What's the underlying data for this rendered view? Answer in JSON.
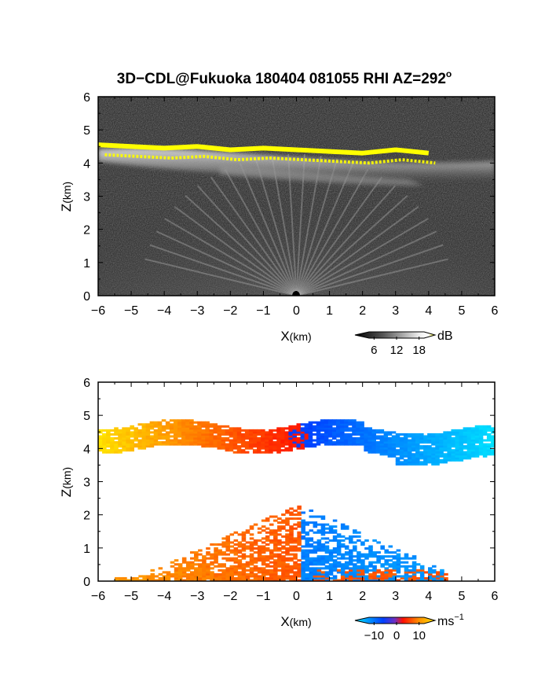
{
  "title": {
    "text": "3D−CDL@Fukuoka 180404 081055 RHI AZ=292",
    "degree": "o"
  },
  "chart_data": [
    {
      "type": "heatmap",
      "quantity": "backscatter intensity",
      "xlabel": "X",
      "xlabel_unit": "(km)",
      "ylabel": "Z",
      "ylabel_unit": "(km)",
      "xlim": [
        -6,
        6
      ],
      "ylim": [
        0,
        6
      ],
      "xticks": [
        -6,
        -5,
        -4,
        -3,
        -2,
        -1,
        0,
        1,
        2,
        3,
        4,
        5,
        6
      ],
      "yticks": [
        0,
        1,
        2,
        3,
        4,
        5,
        6
      ],
      "xtick_labels": [
        "−6",
        "−5",
        "−4",
        "−3",
        "−2",
        "−1",
        "0",
        "1",
        "2",
        "3",
        "4",
        "5",
        "6"
      ],
      "ytick_labels": [
        "0",
        "1",
        "2",
        "3",
        "4",
        "5",
        "6"
      ],
      "colorbar": {
        "unit": "dB",
        "ticks": [
          6,
          12,
          18
        ],
        "tick_labels": [
          "6",
          "12",
          "18"
        ],
        "colors": [
          "#000000",
          "#ffffff",
          "#ffff00"
        ]
      },
      "features": {
        "cloud_top_yellow_x": [
          -6,
          -5,
          -4,
          -3,
          -2,
          -1,
          0,
          1,
          2,
          3,
          4
        ],
        "cloud_top_yellow_z": [
          4.55,
          4.5,
          4.45,
          4.5,
          4.4,
          4.45,
          4.4,
          4.35,
          4.3,
          4.4,
          4.3
        ],
        "cloud_band_x_range": [
          -6,
          6
        ],
        "cloud_band_z_range": [
          3.5,
          4.7
        ],
        "near_ground_clutter_z_max": 1.5
      }
    },
    {
      "type": "heatmap",
      "quantity": "radial velocity",
      "xlabel": "X",
      "xlabel_unit": "(km)",
      "ylabel": "Z",
      "ylabel_unit": "(km)",
      "xlim": [
        -6,
        6
      ],
      "ylim": [
        0,
        6
      ],
      "xticks": [
        -6,
        -5,
        -4,
        -3,
        -2,
        -1,
        0,
        1,
        2,
        3,
        4,
        5,
        6
      ],
      "yticks": [
        0,
        1,
        2,
        3,
        4,
        5,
        6
      ],
      "xtick_labels": [
        "−6",
        "−5",
        "−4",
        "−3",
        "−2",
        "−1",
        "0",
        "1",
        "2",
        "3",
        "4",
        "5",
        "6"
      ],
      "ytick_labels": [
        "0",
        "1",
        "2",
        "3",
        "4",
        "5",
        "6"
      ],
      "colorbar": {
        "unit": "ms",
        "unit_exponent": "−1",
        "ticks": [
          -10,
          0,
          10
        ],
        "tick_labels": [
          "−10",
          "0",
          "10"
        ],
        "colors": [
          "#00e5ff",
          "#0040ff",
          "#ff1000",
          "#ff9000",
          "#ffe000"
        ]
      },
      "features": {
        "upper_layer_x_range": [
          -6,
          6
        ],
        "upper_layer_z_range": [
          3.5,
          4.8
        ],
        "upper_velocity_at_x": {
          "x": [
            -6,
            -3,
            0,
            3,
            6
          ],
          "v": [
            12,
            6,
            0,
            -6,
            -12
          ]
        },
        "lower_layer_x_range": [
          -5.5,
          4.5
        ],
        "lower_layer_z_max": 2.3
      }
    }
  ]
}
